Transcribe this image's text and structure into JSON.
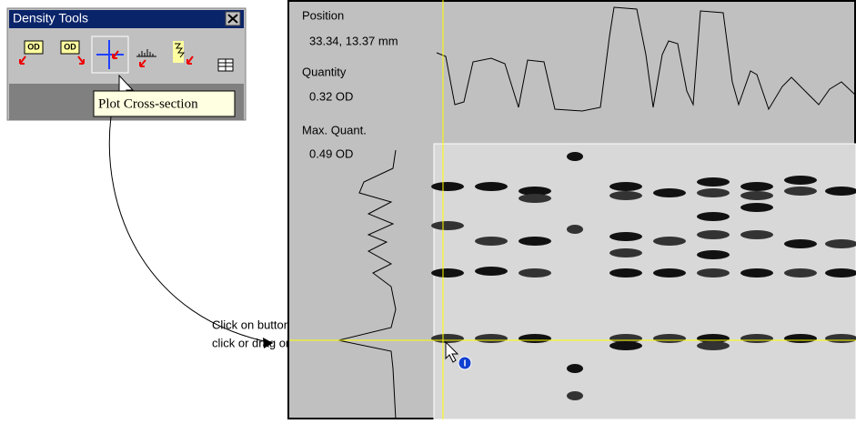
{
  "toolbar": {
    "title": "Density Tools",
    "icon_labels": [
      "OD",
      "OD"
    ],
    "tooltip": "Plot Cross-section"
  },
  "readout": {
    "position_label": "Position",
    "position_value": "33.34, 13.37 mm",
    "quantity_label": "Quantity",
    "quantity_value": "0.32 OD",
    "max_label": "Max. Quant.",
    "max_value": "0.49 OD"
  },
  "callout": {
    "lines": [
      "Click on button, then",
      "click or drag on the image."
    ]
  }
}
